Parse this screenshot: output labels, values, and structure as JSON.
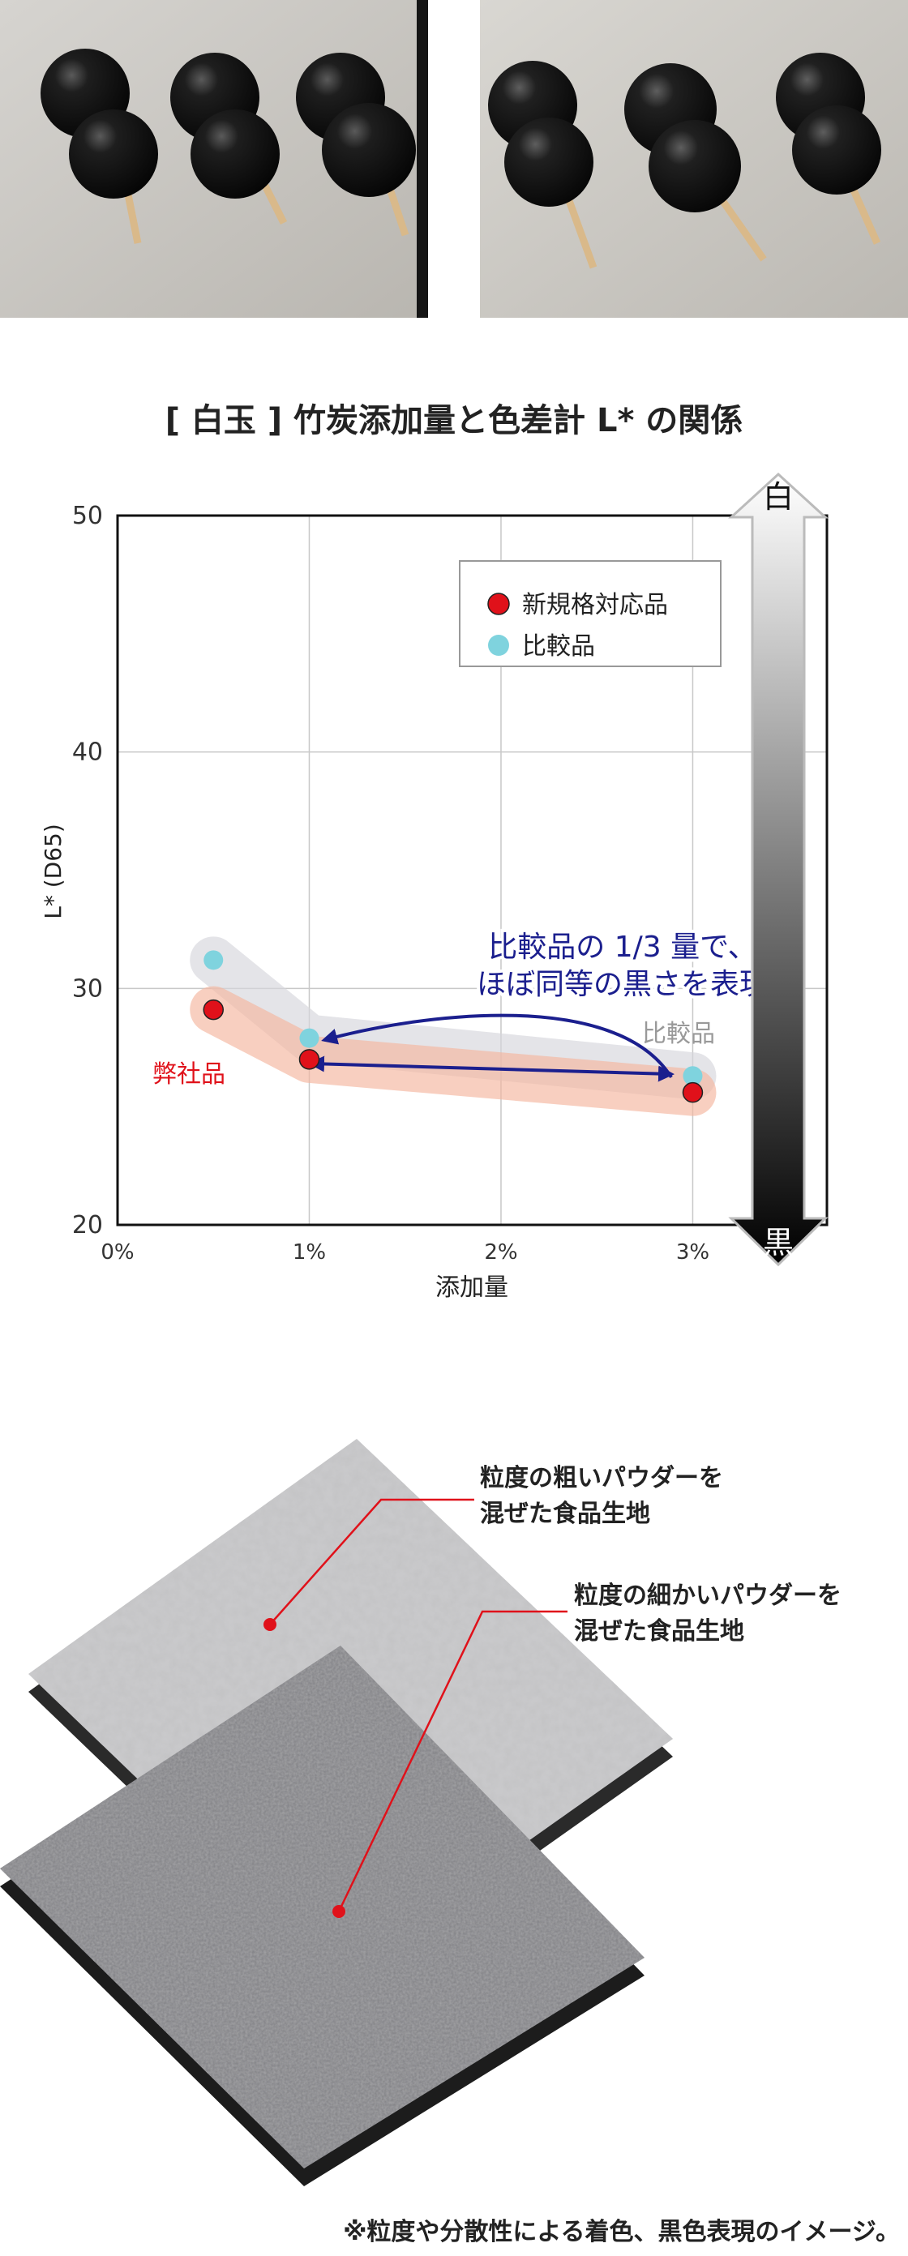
{
  "chart_data": {
    "type": "scatter",
    "title": "[ 白玉 ] 竹炭添加量と色差計 L* の関係",
    "xlabel": "添加量",
    "ylabel": "L* (D65)",
    "x_ticks": [
      "0%",
      "1%",
      "2%",
      "3%"
    ],
    "y_ticks": [
      "20",
      "30",
      "40",
      "50"
    ],
    "xlim": [
      0,
      3.7
    ],
    "ylim": [
      20,
      50
    ],
    "grid": true,
    "legend_position": "top-right",
    "series": [
      {
        "name": "新規格対応品",
        "color": "#e0111a",
        "points": [
          [
            0.5,
            29.1
          ],
          [
            1.0,
            27.0
          ],
          [
            3.0,
            25.6
          ]
        ]
      },
      {
        "name": "比較品",
        "color": "#7fd3de",
        "points": [
          [
            0.5,
            31.2
          ],
          [
            1.0,
            27.9
          ],
          [
            3.0,
            26.3
          ]
        ]
      }
    ],
    "annotations": {
      "own_label": "弊社品",
      "comparison_label": "比較品",
      "message_line1": "比較品の 1/3 量で、",
      "message_line2": "ほぼ同等の黒さを表現",
      "scale_top": "白",
      "scale_bottom": "黒"
    }
  },
  "diagram": {
    "coarse_caption_line1": "粒度の粗いパウダーを",
    "coarse_caption_line2": "混ぜた食品生地",
    "fine_caption_line1": "粒度の細かいパウダーを",
    "fine_caption_line2": "混ぜた食品生地"
  },
  "footnote": "※粒度や分散性による着色、黒色表現のイメージ。",
  "colors": {
    "accent_blue": "#1b1f8e",
    "own_red": "#e0111a",
    "compare_cyan": "#7fd3de"
  }
}
